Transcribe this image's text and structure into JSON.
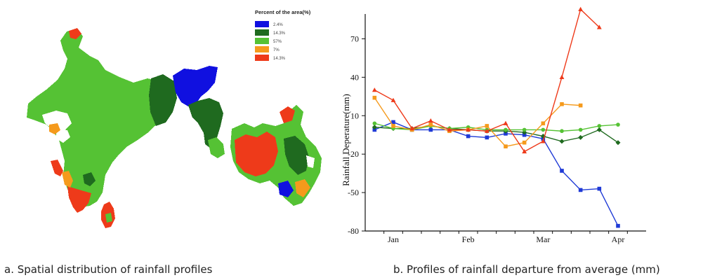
{
  "captions": {
    "a": "a. Spatial distribution of rainfall profiles",
    "b": "b. Profiles of rainfall departure from average (mm)"
  },
  "map": {
    "legend_title": "Percent of the area(%)",
    "legend": [
      {
        "label": "2.4%",
        "color": "#1010e0"
      },
      {
        "label": "14.3%",
        "color": "#1f6a1f"
      },
      {
        "label": "57%",
        "color": "#55c234"
      },
      {
        "label": "7%",
        "color": "#f59a1c"
      },
      {
        "label": "14.3%",
        "color": "#ee3a1a"
      }
    ]
  },
  "chart_data": {
    "type": "line",
    "title": "",
    "xlabel": "",
    "ylabel": "Rainfall  Deperature(mm)",
    "ylim": [
      -80,
      85
    ],
    "yticks": [
      70,
      40,
      10,
      -20,
      -50,
      -80
    ],
    "xlim": [
      0,
      15
    ],
    "x_tick_labels": [
      {
        "label": "Jan",
        "x": 1.5
      },
      {
        "label": "Feb",
        "x": 5.5
      },
      {
        "label": "Mar",
        "x": 9.5
      },
      {
        "label": "Apr",
        "x": 13.5
      }
    ],
    "x": [
      0.5,
      1.5,
      2.5,
      3.5,
      4.5,
      5.5,
      6.5,
      7.5,
      8.5,
      9.5,
      10.5,
      11.5,
      12.5,
      13.5,
      14.5
    ],
    "grid": false,
    "series": [
      {
        "color": "#1f3ad6",
        "marker": "square",
        "values": [
          -1,
          5,
          -1,
          -1,
          -1,
          -6,
          -7,
          -4,
          -5,
          -8,
          -33,
          -48,
          -47,
          -76,
          null
        ]
      },
      {
        "color": "#1f6a1f",
        "marker": "diamond",
        "values": [
          1,
          0,
          0,
          2,
          0,
          -1,
          -2,
          -2,
          -3,
          -6,
          -10,
          -7,
          -1,
          -11,
          null
        ]
      },
      {
        "color": "#55c234",
        "marker": "circle",
        "values": [
          4,
          0,
          -1,
          2,
          0,
          1,
          -1,
          -1,
          -1,
          -1,
          -2,
          -1,
          2,
          3,
          null
        ]
      },
      {
        "color": "#f59a1c",
        "marker": "square",
        "values": [
          24,
          2,
          -1,
          3,
          -2,
          -1,
          2,
          -14,
          -11,
          4,
          19,
          18,
          null,
          null,
          null
        ]
      },
      {
        "color": "#ee3a1a",
        "marker": "triangle",
        "values": [
          30,
          22,
          0,
          6,
          -1,
          -1,
          -2,
          4,
          -18,
          -10,
          40,
          93,
          79,
          null,
          null
        ]
      }
    ]
  }
}
